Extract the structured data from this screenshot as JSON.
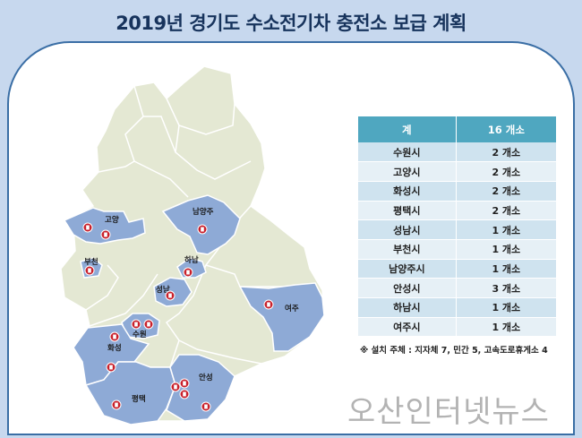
{
  "title": "2019년 경기도 수소전기차 충전소 보급 계획",
  "table": {
    "header": {
      "region": "계",
      "count": "16 개소"
    },
    "rows": [
      {
        "region": "수원시",
        "count": "2 개소"
      },
      {
        "region": "고양시",
        "count": "2 개소"
      },
      {
        "region": "화성시",
        "count": "2 개소"
      },
      {
        "region": "평택시",
        "count": "2 개소"
      },
      {
        "region": "성남시",
        "count": "1 개소"
      },
      {
        "region": "부천시",
        "count": "1 개소"
      },
      {
        "region": "남양주시",
        "count": "1 개소"
      },
      {
        "region": "안성시",
        "count": "3 개소"
      },
      {
        "region": "하남시",
        "count": "1 개소"
      },
      {
        "region": "여주시",
        "count": "1 개소"
      }
    ]
  },
  "note": "※ 설치 주체 : 지자체 7, 민간 5, 고속도로휴게소 4",
  "watermark": "오산인터넷뉴스",
  "map": {
    "highlight_color": "#8eaad6",
    "base_color": "#e4e8d3",
    "marker_color": "#c8202b",
    "labels": {
      "goyang": "고양",
      "namyangju": "남양주",
      "bucheon": "부천",
      "hanam": "하남",
      "seongnam": "성남",
      "yeoju": "여주",
      "suwon": "수원",
      "hwaseong": "화성",
      "anseong": "안성",
      "pyeongtaek": "평택"
    }
  }
}
